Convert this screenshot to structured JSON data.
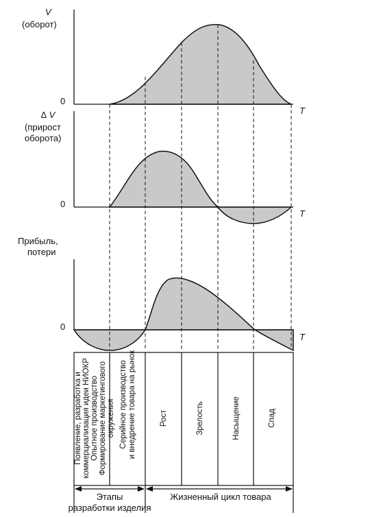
{
  "charts": {
    "top": {
      "y_label_1": "V",
      "y_label_2": "(оборот)",
      "zero_label": "0",
      "t_label": "T"
    },
    "middle": {
      "y_label_1": "∆ V",
      "y_label_2": "(прирост",
      "y_label_3": "оборота)",
      "zero_label": "0",
      "t_label": "T"
    },
    "bottom": {
      "y_label_1": "Прибыль,",
      "y_label_2": "потери",
      "zero_label": "0",
      "t_label": "T"
    }
  },
  "table": {
    "stage1": {
      "line1": "Появление, разработка и",
      "line2": "коммерциализация идеи НИОКР",
      "line3": "Опытное производство",
      "line4": "Формирование маркетингового",
      "line5": "окружения"
    },
    "stage2": {
      "line1": "Серийное производство",
      "line2": "и внедрение товара на рынок"
    },
    "stage3": "Рост",
    "stage4": "Зрелость",
    "stage5": "Насыщение",
    "stage6": "Спад"
  },
  "footer": {
    "left_label_1": "Этапы",
    "left_label_2": "разработки изделия",
    "right_label": "Жизненный цикл товара"
  }
}
